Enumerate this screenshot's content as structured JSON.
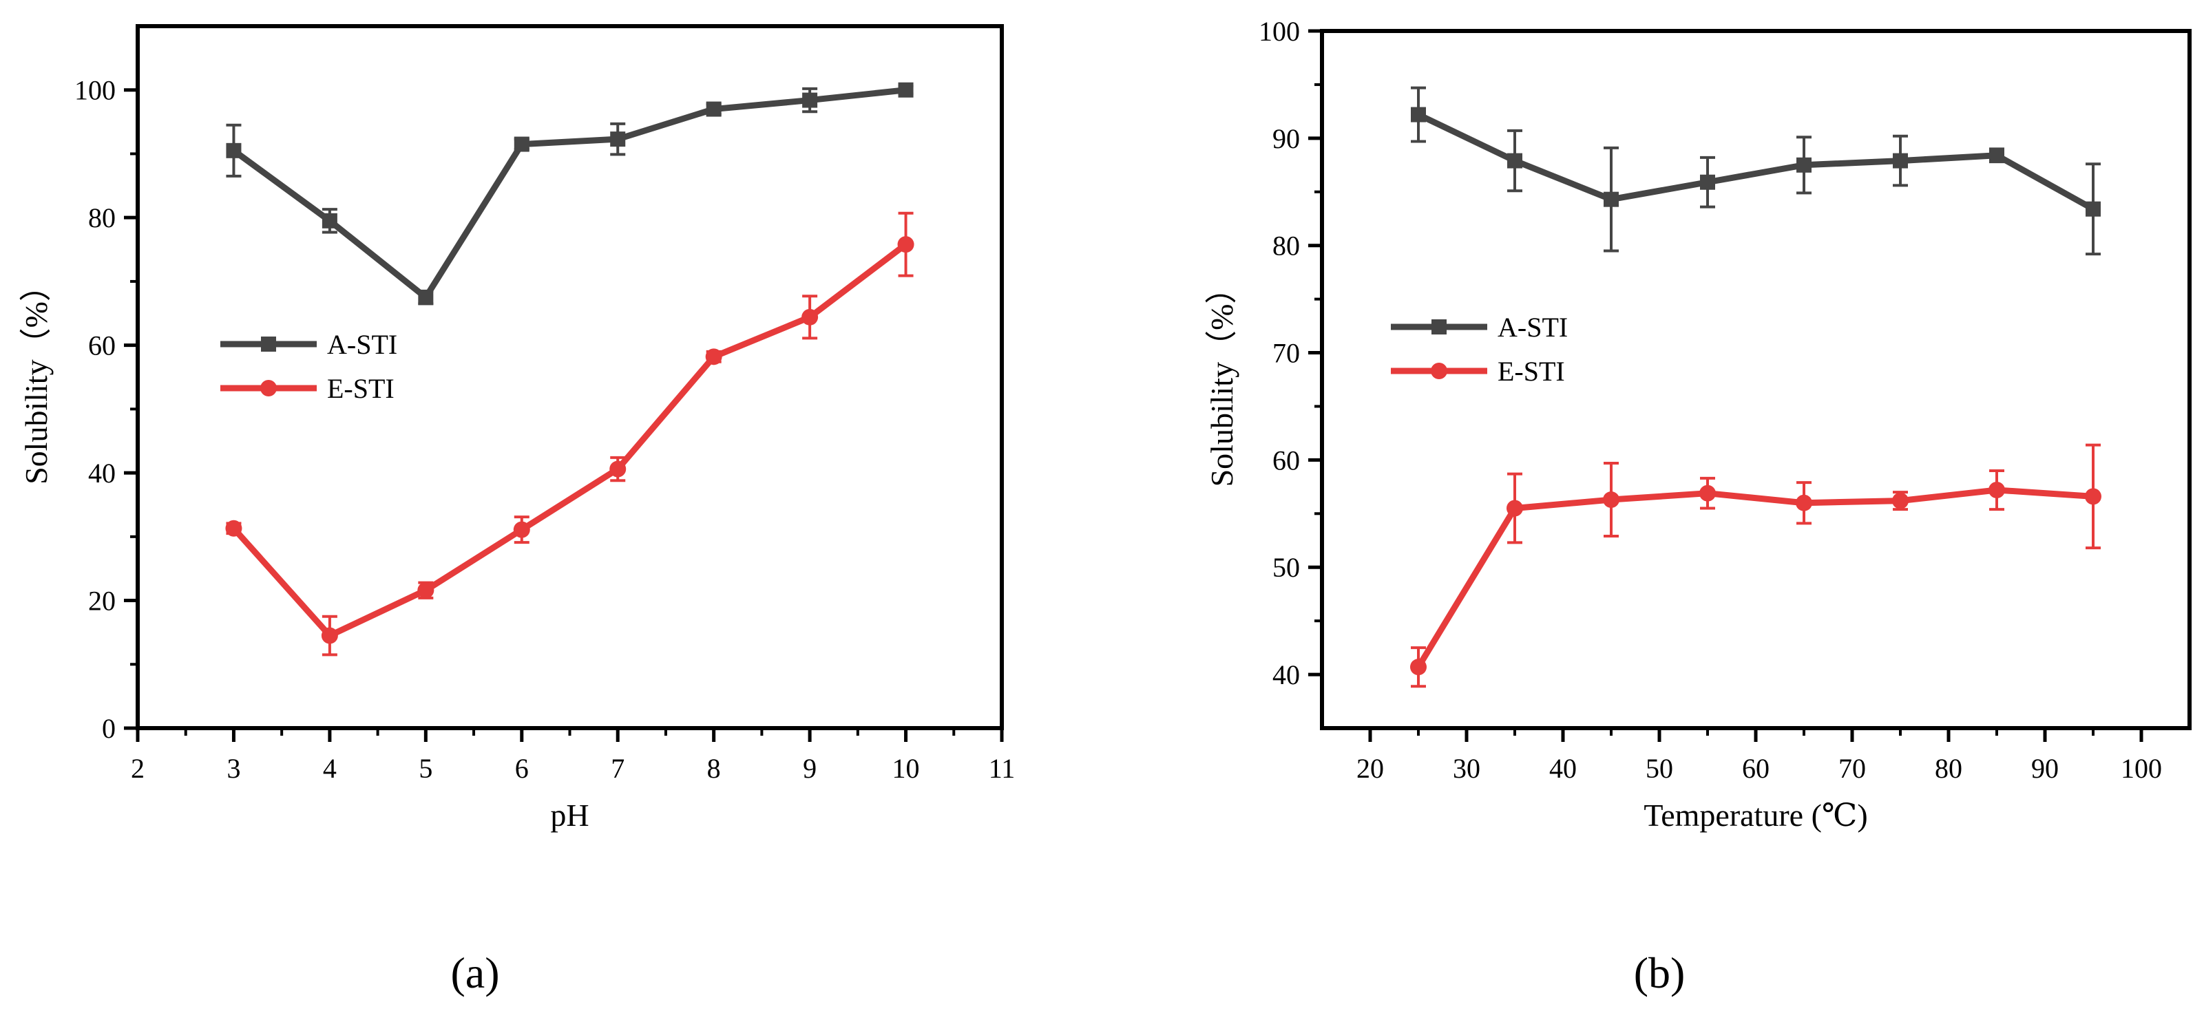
{
  "figure": {
    "panel_a_label": "(a)",
    "panel_b_label": "(b)"
  },
  "chart_data": [
    {
      "type": "line",
      "panel": "a",
      "xlabel": "pH",
      "ylabel": "Solubility（%）",
      "xlim": [
        2,
        11
      ],
      "ylim": [
        0,
        110
      ],
      "xticks": [
        2,
        3,
        4,
        5,
        6,
        7,
        8,
        9,
        10,
        11
      ],
      "yticks": [
        0,
        20,
        40,
        60,
        80,
        100
      ],
      "legend_position": "center-left",
      "series": [
        {
          "name": "A-STI",
          "color": "#454545",
          "marker": "square",
          "x": [
            3,
            4,
            5,
            6,
            7,
            8,
            9,
            10
          ],
          "y": [
            90.5,
            79.5,
            67.5,
            91.5,
            92.3,
            97.0,
            98.4,
            100.0
          ],
          "err": [
            4.0,
            1.8,
            1.0,
            0.8,
            2.4,
            0.8,
            1.8,
            0.6
          ]
        },
        {
          "name": "E-STI",
          "color": "#E63B3B",
          "marker": "circle",
          "x": [
            3,
            4,
            5,
            6,
            7,
            8,
            9,
            10
          ],
          "y": [
            31.3,
            14.5,
            21.6,
            31.1,
            40.6,
            58.2,
            64.4,
            75.8
          ],
          "err": [
            0.8,
            3.0,
            1.2,
            2.0,
            1.8,
            0.8,
            3.3,
            4.9
          ]
        }
      ]
    },
    {
      "type": "line",
      "panel": "b",
      "xlabel": "Temperature (℃)",
      "ylabel": "Solubility（%）",
      "xlim": [
        15,
        105
      ],
      "ylim": [
        35,
        100
      ],
      "xticks": [
        20,
        30,
        40,
        50,
        60,
        70,
        80,
        90,
        100
      ],
      "yticks": [
        40,
        50,
        60,
        70,
        80,
        90,
        100
      ],
      "legend_position": "center-left",
      "series": [
        {
          "name": "A-STI",
          "color": "#454545",
          "marker": "square",
          "x": [
            25,
            35,
            45,
            55,
            65,
            75,
            85,
            95
          ],
          "y": [
            92.2,
            87.9,
            84.3,
            85.9,
            87.5,
            87.9,
            88.4,
            83.4
          ],
          "err": [
            2.5,
            2.8,
            4.8,
            2.3,
            2.6,
            2.3,
            0.6,
            4.2
          ]
        },
        {
          "name": "E-STI",
          "color": "#E63B3B",
          "marker": "circle",
          "x": [
            25,
            35,
            45,
            55,
            65,
            75,
            85,
            95
          ],
          "y": [
            40.7,
            55.5,
            56.3,
            56.9,
            56.0,
            56.2,
            57.2,
            56.6
          ],
          "err": [
            1.8,
            3.2,
            3.4,
            1.4,
            1.9,
            0.8,
            1.8,
            4.8
          ]
        }
      ]
    }
  ]
}
